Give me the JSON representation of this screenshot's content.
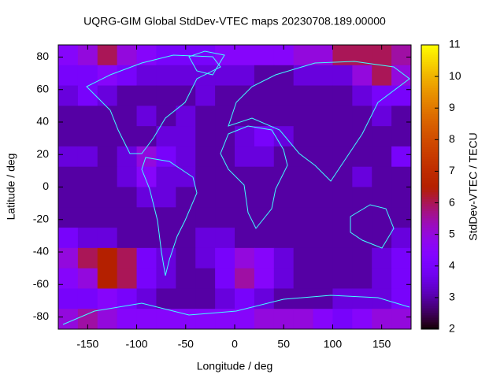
{
  "chart_data": {
    "type": "heatmap",
    "title": "UQRG-GIM Global StdDev-VTEC maps 20230708.189.00000",
    "x_label": "Longitude / deg",
    "y_label": "Latitude / deg",
    "colorbar_label": "StdDev-VTEC / TECU",
    "xlim": [
      -180,
      180
    ],
    "ylim": [
      -87.5,
      87.5
    ],
    "xticks": [
      -150,
      -100,
      -50,
      0,
      50,
      100,
      150
    ],
    "yticks": [
      -80,
      -60,
      -40,
      -20,
      0,
      20,
      40,
      60,
      80
    ],
    "clim": [
      2,
      11
    ],
    "cticks": [
      2,
      3,
      4,
      5,
      6,
      7,
      8,
      9,
      10,
      11
    ],
    "x": [
      -170,
      -150,
      -130,
      -110,
      -90,
      -70,
      -50,
      -30,
      -10,
      10,
      30,
      50,
      70,
      90,
      110,
      130,
      150,
      170
    ],
    "y": [
      81.25,
      68.75,
      56.25,
      43.75,
      31.25,
      18.75,
      6.25,
      -6.25,
      -18.75,
      -31.25,
      -43.75,
      -56.25,
      -68.75,
      -81.25
    ],
    "values": [
      [
        4.5,
        5,
        6,
        5,
        4.5,
        4,
        4,
        4,
        4.5,
        4.5,
        4.5,
        4.5,
        5,
        5,
        6,
        6,
        6,
        5.5
      ],
      [
        4,
        4,
        4.5,
        4,
        3.5,
        3.5,
        3.5,
        3.5,
        3.5,
        3.5,
        3,
        3,
        3.5,
        3.5,
        3.5,
        5,
        6,
        5
      ],
      [
        3.5,
        4,
        3.5,
        3,
        3,
        3,
        3,
        3.5,
        3,
        3,
        3,
        3,
        3,
        3,
        3,
        3.5,
        4,
        4
      ],
      [
        3,
        3,
        3,
        3,
        3.5,
        3,
        3.5,
        3,
        3,
        3,
        3,
        3,
        3,
        3,
        3,
        3,
        3.5,
        3
      ],
      [
        3,
        3,
        3,
        3,
        3,
        3.5,
        3.5,
        3,
        3,
        3.5,
        4,
        3.5,
        3,
        3,
        3,
        3,
        3,
        3
      ],
      [
        3.5,
        3.5,
        3,
        3.5,
        5,
        4,
        3.5,
        3,
        3,
        3.5,
        3.5,
        3,
        3,
        3,
        3,
        3,
        3,
        4
      ],
      [
        3,
        3,
        3,
        3.5,
        4.5,
        3.5,
        3.5,
        3,
        3,
        3,
        3,
        3,
        3,
        3,
        3,
        3.5,
        3,
        3
      ],
      [
        3,
        3,
        3,
        3,
        3.5,
        3.5,
        3,
        3,
        3,
        3,
        3,
        3,
        3,
        3,
        3,
        3,
        3,
        3
      ],
      [
        3,
        3,
        3,
        3,
        3,
        3,
        3,
        3,
        3,
        3,
        3,
        3,
        3,
        3,
        3,
        3,
        3,
        3
      ],
      [
        4,
        3.5,
        3.5,
        3,
        3,
        3,
        3,
        3.5,
        3.5,
        3,
        3,
        3,
        3,
        3,
        3,
        3,
        3,
        3.5
      ],
      [
        5,
        6,
        6.5,
        6,
        4,
        3.5,
        3,
        3.5,
        4,
        5,
        4.5,
        3.5,
        3,
        3,
        3,
        3,
        3.5,
        4
      ],
      [
        4.5,
        5,
        6.5,
        6,
        4,
        3.5,
        3,
        3,
        4,
        5.5,
        4.5,
        3.5,
        3,
        3,
        3,
        3,
        3.5,
        4
      ],
      [
        4,
        4,
        4.5,
        4,
        3.5,
        3,
        3,
        3,
        3.5,
        4,
        3.5,
        3,
        3,
        3,
        3.5,
        3.5,
        3.5,
        4
      ],
      [
        5,
        5.5,
        5,
        4.5,
        4.5,
        4.5,
        4.5,
        4.5,
        4.5,
        4.5,
        5,
        5,
        5,
        4.5,
        4,
        4.5,
        5,
        5
      ]
    ]
  }
}
